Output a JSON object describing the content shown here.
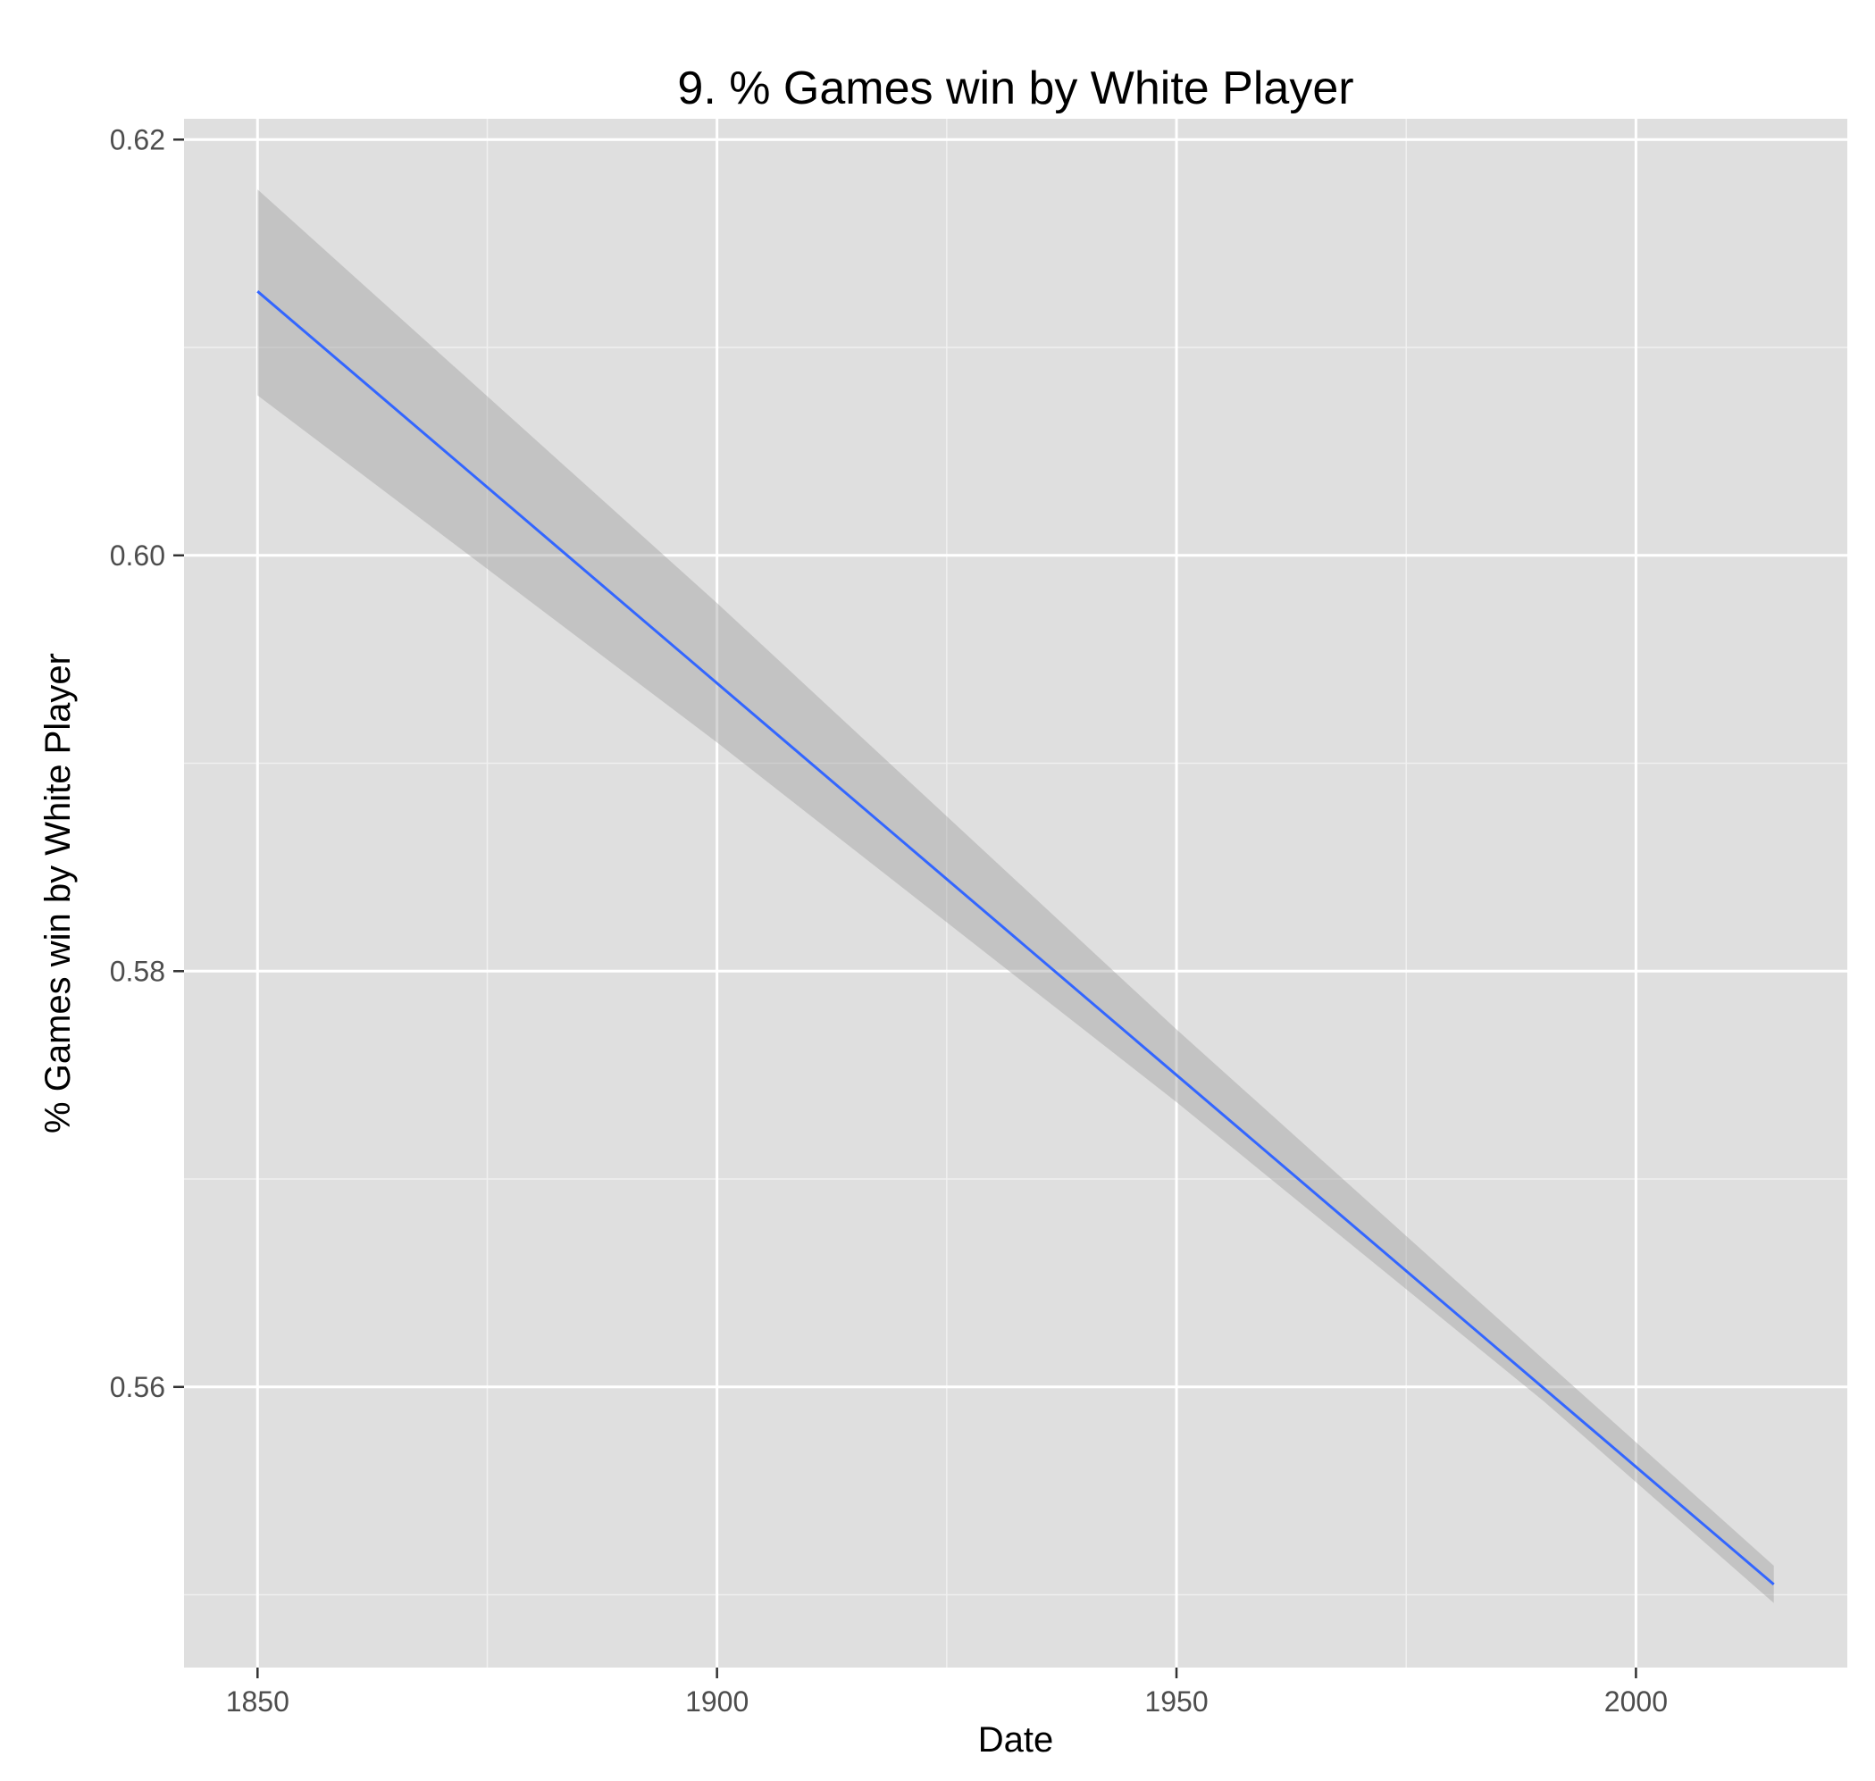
{
  "chart_data": {
    "type": "line",
    "title": "9. % Games win by White Player",
    "xlabel": "Date",
    "ylabel": "% Games win by White Player",
    "xlim": [
      1842,
      2023
    ],
    "ylim": [
      0.5465,
      0.621
    ],
    "x_ticks": [
      {
        "value": 1850,
        "label": "1850"
      },
      {
        "value": 1900,
        "label": "1900"
      },
      {
        "value": 1950,
        "label": "1950"
      },
      {
        "value": 2000,
        "label": "2000"
      }
    ],
    "x_minor_ticks": [
      1875,
      1925,
      1975
    ],
    "y_ticks": [
      {
        "value": 0.62,
        "label": "0.62"
      },
      {
        "value": 0.6,
        "label": "0.60"
      },
      {
        "value": 0.58,
        "label": "0.58"
      },
      {
        "value": 0.56,
        "label": "0.56"
      }
    ],
    "y_minor_ticks": [
      0.61,
      0.59,
      0.57,
      0.55
    ],
    "grid": true,
    "series": [
      {
        "x": [
          1850,
          2015
        ],
        "y": [
          0.6127,
          0.5505
        ],
        "ci_lower": [
          0.6077,
          0.5496
        ],
        "ci_upper": [
          0.6176,
          0.5514
        ],
        "ci_points": [
          {
            "x": 1850,
            "lower": 0.6077,
            "upper": 0.6176
          },
          {
            "x": 1900,
            "lower": 0.591,
            "upper": 0.5977
          },
          {
            "x": 1950,
            "lower": 0.5737,
            "upper": 0.5772
          },
          {
            "x": 1990,
            "lower": 0.5593,
            "upper": 0.5613
          },
          {
            "x": 2015,
            "lower": 0.5496,
            "upper": 0.5514
          }
        ]
      }
    ],
    "colors": {
      "panel_background": "#dfdfdf",
      "grid_major": "#ffffff",
      "grid_minor": "#f0f0f0",
      "line": "#3366ff",
      "ribbon": "#999999",
      "axis_tick": "#333333"
    }
  }
}
